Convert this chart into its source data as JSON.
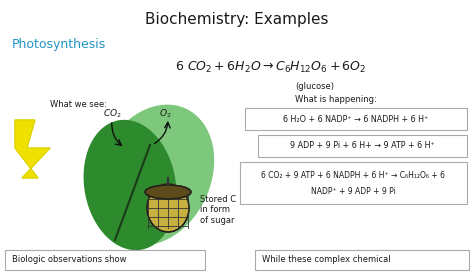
{
  "title": "Biochemistry: Examples",
  "title_fontsize": 11,
  "title_fontweight": "normal",
  "photo_label": "Photosynthesis",
  "photo_color": "#2196c4",
  "photo_fontsize": 9,
  "eq_fontsize": 9,
  "glucose_label": "(glucose)",
  "glucose_fontsize": 6,
  "what_we_see": "What we see:",
  "what_happening": "What is happening:",
  "co2_label": "CO₂",
  "o2_label": "O₂",
  "stored_label": "Stored C\nin form\nof sugar",
  "box1_line1": "6 H₂O + 6 NADP⁺ → 6 NADPH + 6 H⁺",
  "box2_line1": "9 ADP + 9 Pi + 6 H+ → 9 ATP + 6 H⁺",
  "box3_line1": "6 CO₂ + 9 ATP + 6 NADPH + 6 H⁺ → C₆H₁₂O₆ + 6",
  "box3_line2": "NADP⁺ + 9 ADP + 9 Pi",
  "bottom_left": "Biologic observations show",
  "bottom_right": "While these complex chemical",
  "bg_color": "#ffffff",
  "text_color": "#1a1a1a",
  "teal_color": "#2196c4",
  "box_color": "#aaaaaa",
  "leaf_dark": "#2d8a2d",
  "leaf_light": "#5cb85c",
  "leaf_stem": "#1a5c1a",
  "acorn_body": "#c8b040",
  "acorn_cap": "#5c4a1a",
  "lightning_color": "#f0e000",
  "lightning_edge": "#cccc00"
}
